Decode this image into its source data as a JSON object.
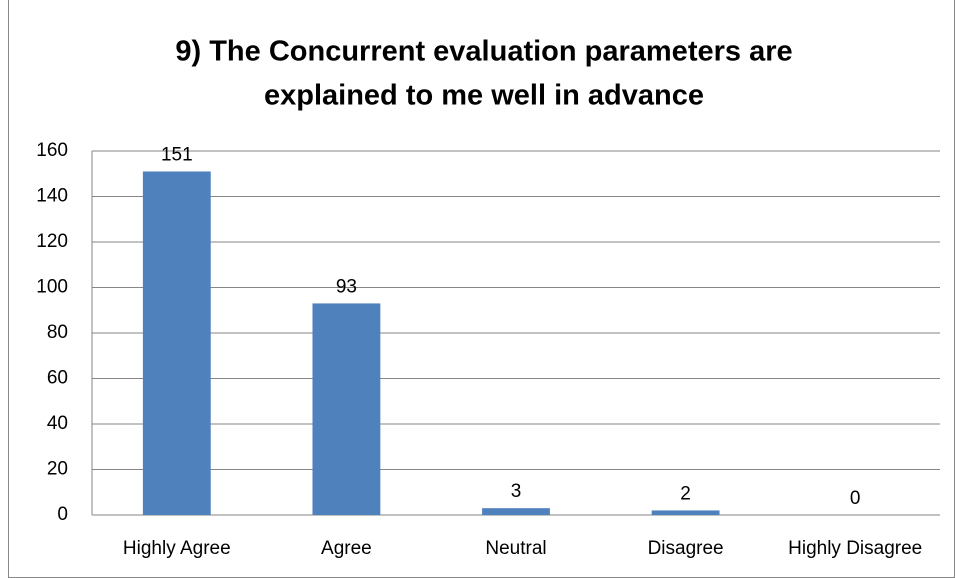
{
  "chart_data": {
    "type": "bar",
    "title": [
      "9) The Concurrent evaluation parameters are",
      "explained to me well in advance"
    ],
    "categories": [
      "Highly Agree",
      "Agree",
      "Neutral",
      "Disagree",
      "Highly Disagree"
    ],
    "values": [
      151,
      93,
      3,
      2,
      0
    ],
    "color": "#4f81bd",
    "ylim": [
      0,
      160
    ],
    "yticks": [
      0,
      20,
      40,
      60,
      80,
      100,
      120,
      140,
      160
    ],
    "grid": true
  }
}
